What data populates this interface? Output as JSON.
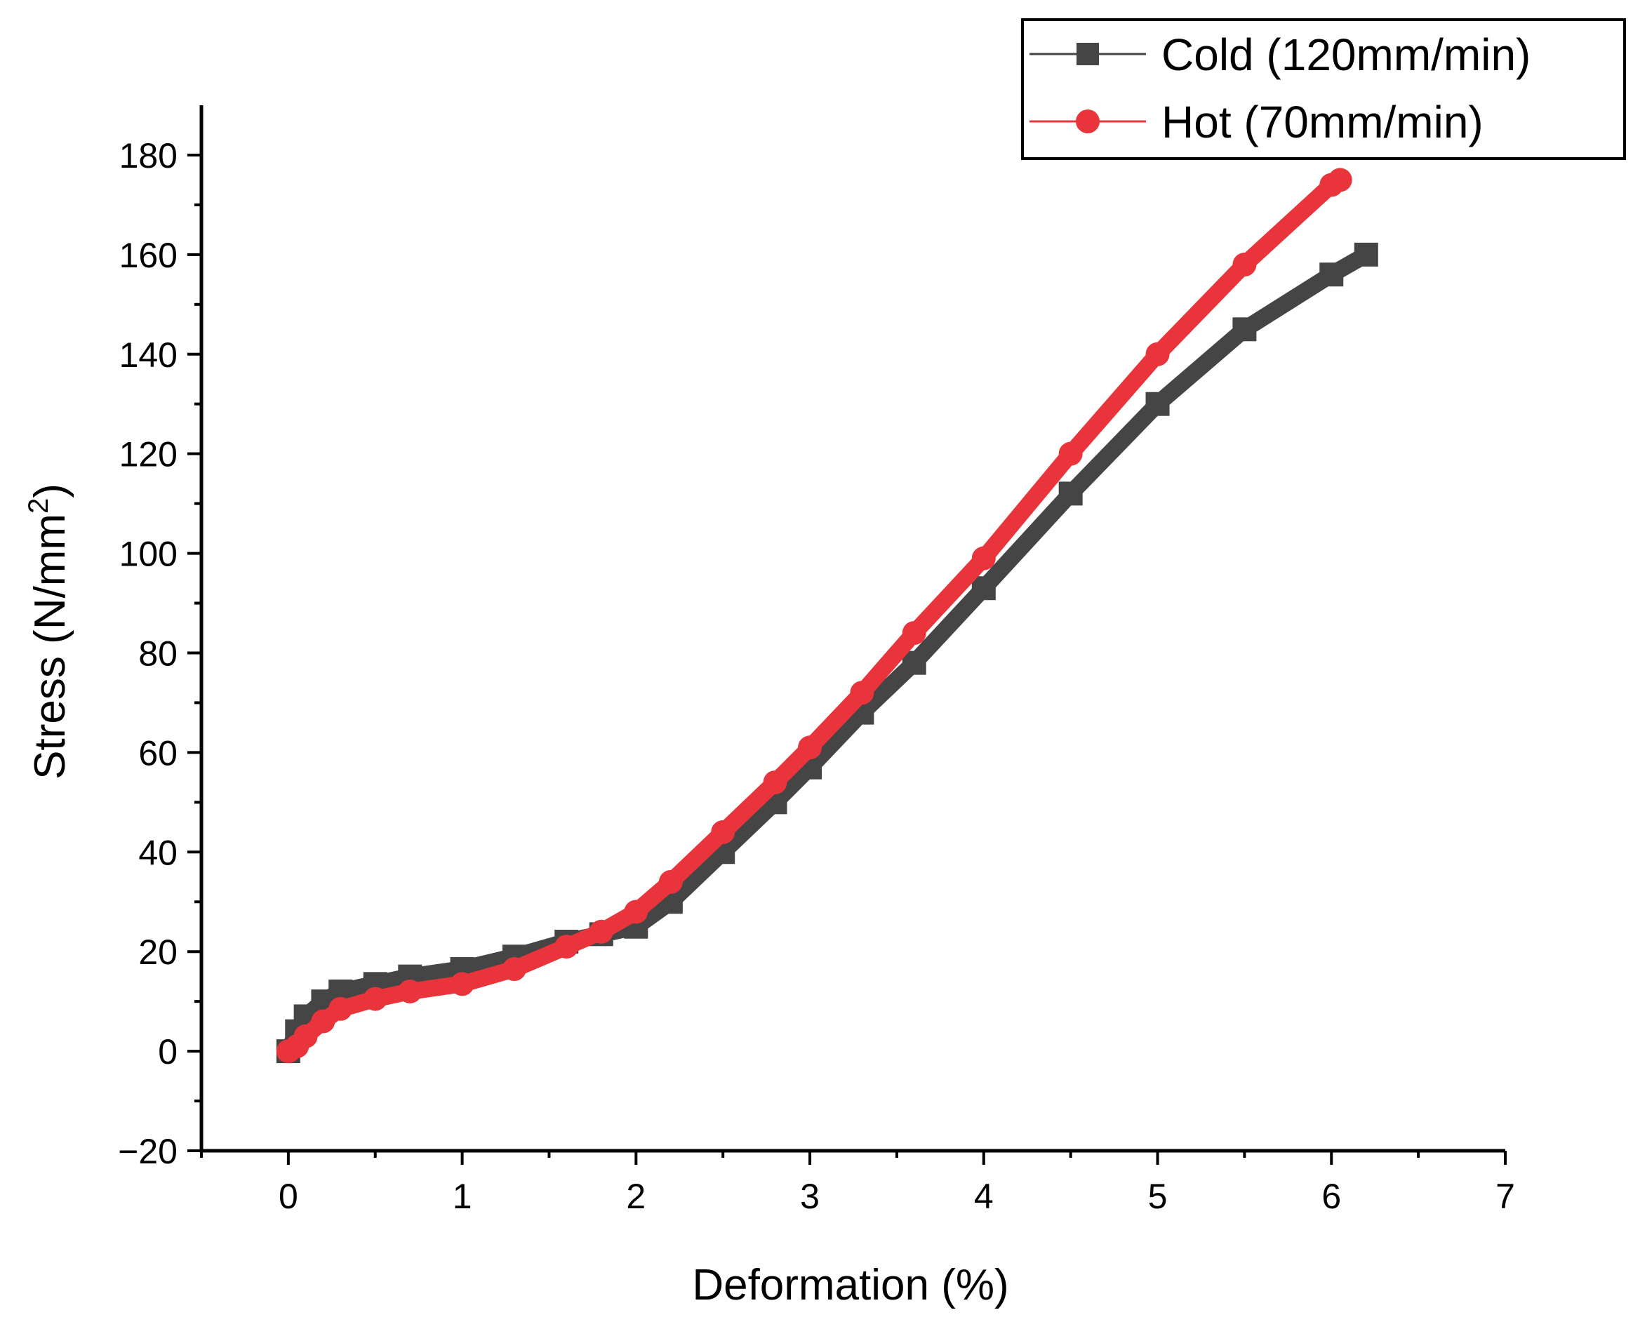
{
  "chart_data": {
    "type": "line",
    "title": "",
    "xlabel": "Deformation (%)",
    "ylabel_main": "Stress (N/mm",
    "ylabel_sup": "2",
    "ylabel_close": ")",
    "xlim": [
      -0.5,
      7
    ],
    "ylim": [
      -20,
      190
    ],
    "x_ticks": [
      0,
      1,
      2,
      3,
      4,
      5,
      6,
      7
    ],
    "x_tick_labels": [
      "0",
      "1",
      "2",
      "3",
      "4",
      "5",
      "6",
      "7"
    ],
    "y_ticks": [
      -20,
      0,
      20,
      40,
      60,
      80,
      100,
      120,
      140,
      160,
      180
    ],
    "y_tick_labels": [
      "−20",
      "0",
      "20",
      "40",
      "60",
      "80",
      "100",
      "120",
      "140",
      "160",
      "180"
    ],
    "grid": false,
    "legend_position": "top-right",
    "series": [
      {
        "name": "Cold (120mm/min)",
        "color": "#454545",
        "marker": "square",
        "x": [
          0,
          0.05,
          0.1,
          0.2,
          0.3,
          0.5,
          0.7,
          1.0,
          1.3,
          1.6,
          1.8,
          2.0,
          2.2,
          2.5,
          2.8,
          3.0,
          3.3,
          3.6,
          4.0,
          4.5,
          5.0,
          5.5,
          6.0,
          6.2
        ],
        "y": [
          0,
          4,
          7,
          10,
          12,
          13.5,
          15,
          16.5,
          19,
          22,
          23.5,
          25,
          30,
          40,
          50,
          57,
          68,
          78,
          93,
          112,
          130,
          145,
          156,
          160
        ]
      },
      {
        "name": "Hot (70mm/min)",
        "color": "#e8343a",
        "marker": "circle",
        "x": [
          0,
          0.05,
          0.1,
          0.2,
          0.3,
          0.5,
          0.7,
          1.0,
          1.3,
          1.6,
          1.8,
          2.0,
          2.2,
          2.5,
          2.8,
          3.0,
          3.3,
          3.6,
          4.0,
          4.5,
          5.0,
          5.5,
          6.0,
          6.05
        ],
        "y": [
          0,
          1,
          3,
          6,
          8.5,
          10.5,
          12,
          13.5,
          16.5,
          21,
          24,
          28,
          34,
          44,
          54,
          61,
          72,
          84,
          99,
          120,
          140,
          158,
          174,
          175
        ]
      }
    ]
  }
}
